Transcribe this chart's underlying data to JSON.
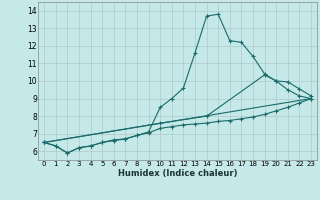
{
  "xlabel": "Humidex (Indice chaleur)",
  "xlim": [
    -0.5,
    23.5
  ],
  "ylim": [
    5.5,
    14.5
  ],
  "yticks": [
    6,
    7,
    8,
    9,
    10,
    11,
    12,
    13,
    14
  ],
  "xticks": [
    0,
    1,
    2,
    3,
    4,
    5,
    6,
    7,
    8,
    9,
    10,
    11,
    12,
    13,
    14,
    15,
    16,
    17,
    18,
    19,
    20,
    21,
    22,
    23
  ],
  "bg_color": "#c5e8e8",
  "grid_color": "#b0c8c8",
  "line_color": "#1a6b6b",
  "line1": {
    "x": [
      0,
      1,
      2,
      3,
      4,
      5,
      6,
      7,
      8,
      9,
      10,
      11,
      12,
      13,
      14,
      15,
      16,
      17,
      18,
      19,
      20,
      21,
      22,
      23
    ],
    "y": [
      6.5,
      6.3,
      5.9,
      6.2,
      6.3,
      6.5,
      6.6,
      6.7,
      6.9,
      7.1,
      8.5,
      9.0,
      9.6,
      11.6,
      13.7,
      13.8,
      12.3,
      12.2,
      11.4,
      10.4,
      10.0,
      9.5,
      9.15,
      9.0
    ]
  },
  "line2": {
    "x": [
      0,
      1,
      2,
      3,
      4,
      5,
      6,
      7,
      8,
      9,
      10,
      11,
      12,
      13,
      14,
      15,
      16,
      17,
      18,
      19,
      20,
      21,
      22,
      23
    ],
    "y": [
      6.5,
      6.3,
      5.9,
      6.2,
      6.3,
      6.5,
      6.65,
      6.7,
      6.9,
      7.05,
      7.3,
      7.4,
      7.5,
      7.55,
      7.6,
      7.7,
      7.75,
      7.85,
      7.95,
      8.1,
      8.3,
      8.5,
      8.75,
      9.0
    ]
  },
  "line3": {
    "x": [
      0,
      23
    ],
    "y": [
      6.5,
      9.0
    ]
  },
  "line4": {
    "x": [
      0,
      10,
      14,
      19,
      20,
      21,
      22,
      23
    ],
    "y": [
      6.5,
      7.6,
      8.0,
      10.35,
      10.0,
      9.95,
      9.55,
      9.15
    ]
  }
}
